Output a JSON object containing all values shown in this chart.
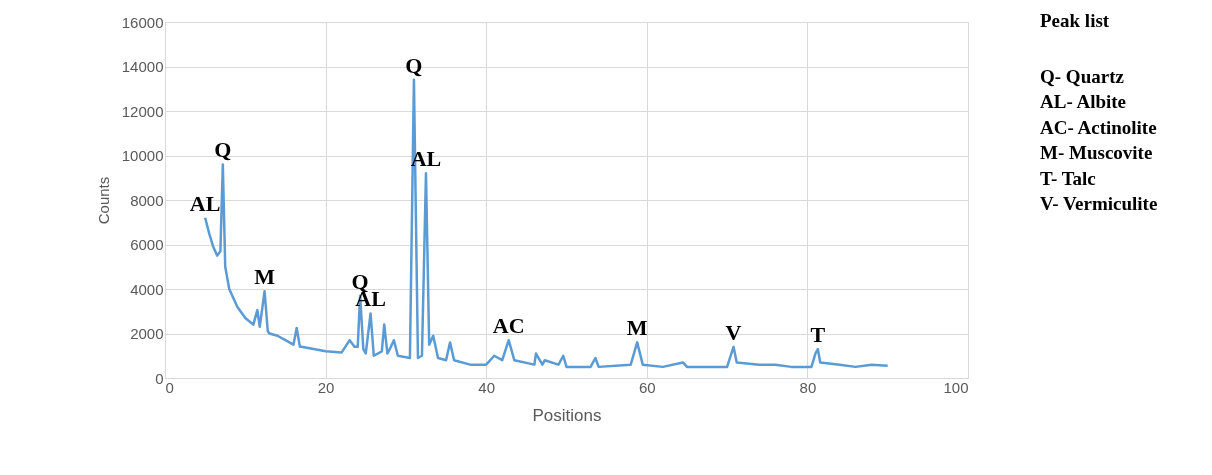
{
  "chart_data": {
    "type": "line",
    "xlabel": "Positions",
    "ylabel": "Counts",
    "xlim": [
      0,
      100
    ],
    "ylim": [
      0,
      16000
    ],
    "xticks": [
      0,
      20,
      40,
      60,
      80,
      100
    ],
    "yticks": [
      0,
      2000,
      4000,
      6000,
      8000,
      10000,
      12000,
      14000,
      16000
    ],
    "grid": true,
    "marker": "none",
    "line_style": "solid",
    "series": [
      {
        "color": "#5b9bd5",
        "x": [
          5,
          5.5,
          6,
          6.5,
          6.9,
          7.2,
          7.5,
          8,
          9,
          10,
          11,
          11.5,
          11.8,
          12.4,
          12.8,
          13,
          14,
          15,
          16,
          16.4,
          16.8,
          17,
          20,
          22,
          23,
          23.6,
          24,
          24.3,
          24.7,
          25,
          25.6,
          26,
          27,
          27.3,
          27.7,
          28,
          28.5,
          29,
          30.5,
          31,
          31.5,
          32,
          32.5,
          32.9,
          33.4,
          34,
          35,
          35.5,
          36,
          38,
          40,
          41,
          42,
          42.8,
          43.5,
          46,
          46.2,
          47,
          47.3,
          49,
          49.6,
          50,
          53,
          53.6,
          54,
          58,
          58.8,
          59.5,
          62,
          64.5,
          65,
          70,
          70.8,
          71.2,
          74,
          76,
          78,
          80.5,
          81,
          81.3,
          81.6,
          84,
          86,
          88,
          90
        ],
        "values": [
          7200,
          6500,
          5900,
          5500,
          5700,
          9600,
          5000,
          4000,
          3200,
          2700,
          2400,
          3050,
          2300,
          3900,
          2100,
          2000,
          1900,
          1700,
          1500,
          2250,
          1400,
          1400,
          1200,
          1150,
          1700,
          1400,
          1400,
          3700,
          1300,
          1100,
          2900,
          1000,
          1200,
          2400,
          1100,
          1300,
          1700,
          1000,
          900,
          13400,
          900,
          1000,
          9200,
          1500,
          1900,
          900,
          800,
          1600,
          800,
          600,
          600,
          1000,
          800,
          1700,
          800,
          600,
          1100,
          600,
          800,
          600,
          1000,
          500,
          500,
          900,
          500,
          600,
          1600,
          600,
          500,
          700,
          500,
          500,
          1400,
          700,
          600,
          600,
          500,
          500,
          1100,
          1300,
          700,
          600,
          500,
          600,
          550
        ]
      }
    ],
    "annotations": [
      {
        "text": "AL",
        "x": 5,
        "y": 7200
      },
      {
        "text": "Q",
        "x": 7.2,
        "y": 9600
      },
      {
        "text": "M",
        "x": 12.4,
        "y": 3900
      },
      {
        "text": "Q",
        "x": 24.3,
        "y": 3700
      },
      {
        "text": "AL",
        "x": 25.6,
        "y": 2900
      },
      {
        "text": "Q",
        "x": 31,
        "y": 13400
      },
      {
        "text": "AL",
        "x": 32.5,
        "y": 9200
      },
      {
        "text": "AC",
        "x": 42.8,
        "y": 1700
      },
      {
        "text": "M",
        "x": 58.8,
        "y": 1600
      },
      {
        "text": "V",
        "x": 70.8,
        "y": 1400
      },
      {
        "text": "T",
        "x": 81.3,
        "y": 1300
      },
      "Peak list",
      "Q- Quartz",
      "AL- Albite",
      "AC- Actinolite",
      "M- Muscovite",
      "T- Talc",
      "V- Vermiculite"
    ]
  }
}
